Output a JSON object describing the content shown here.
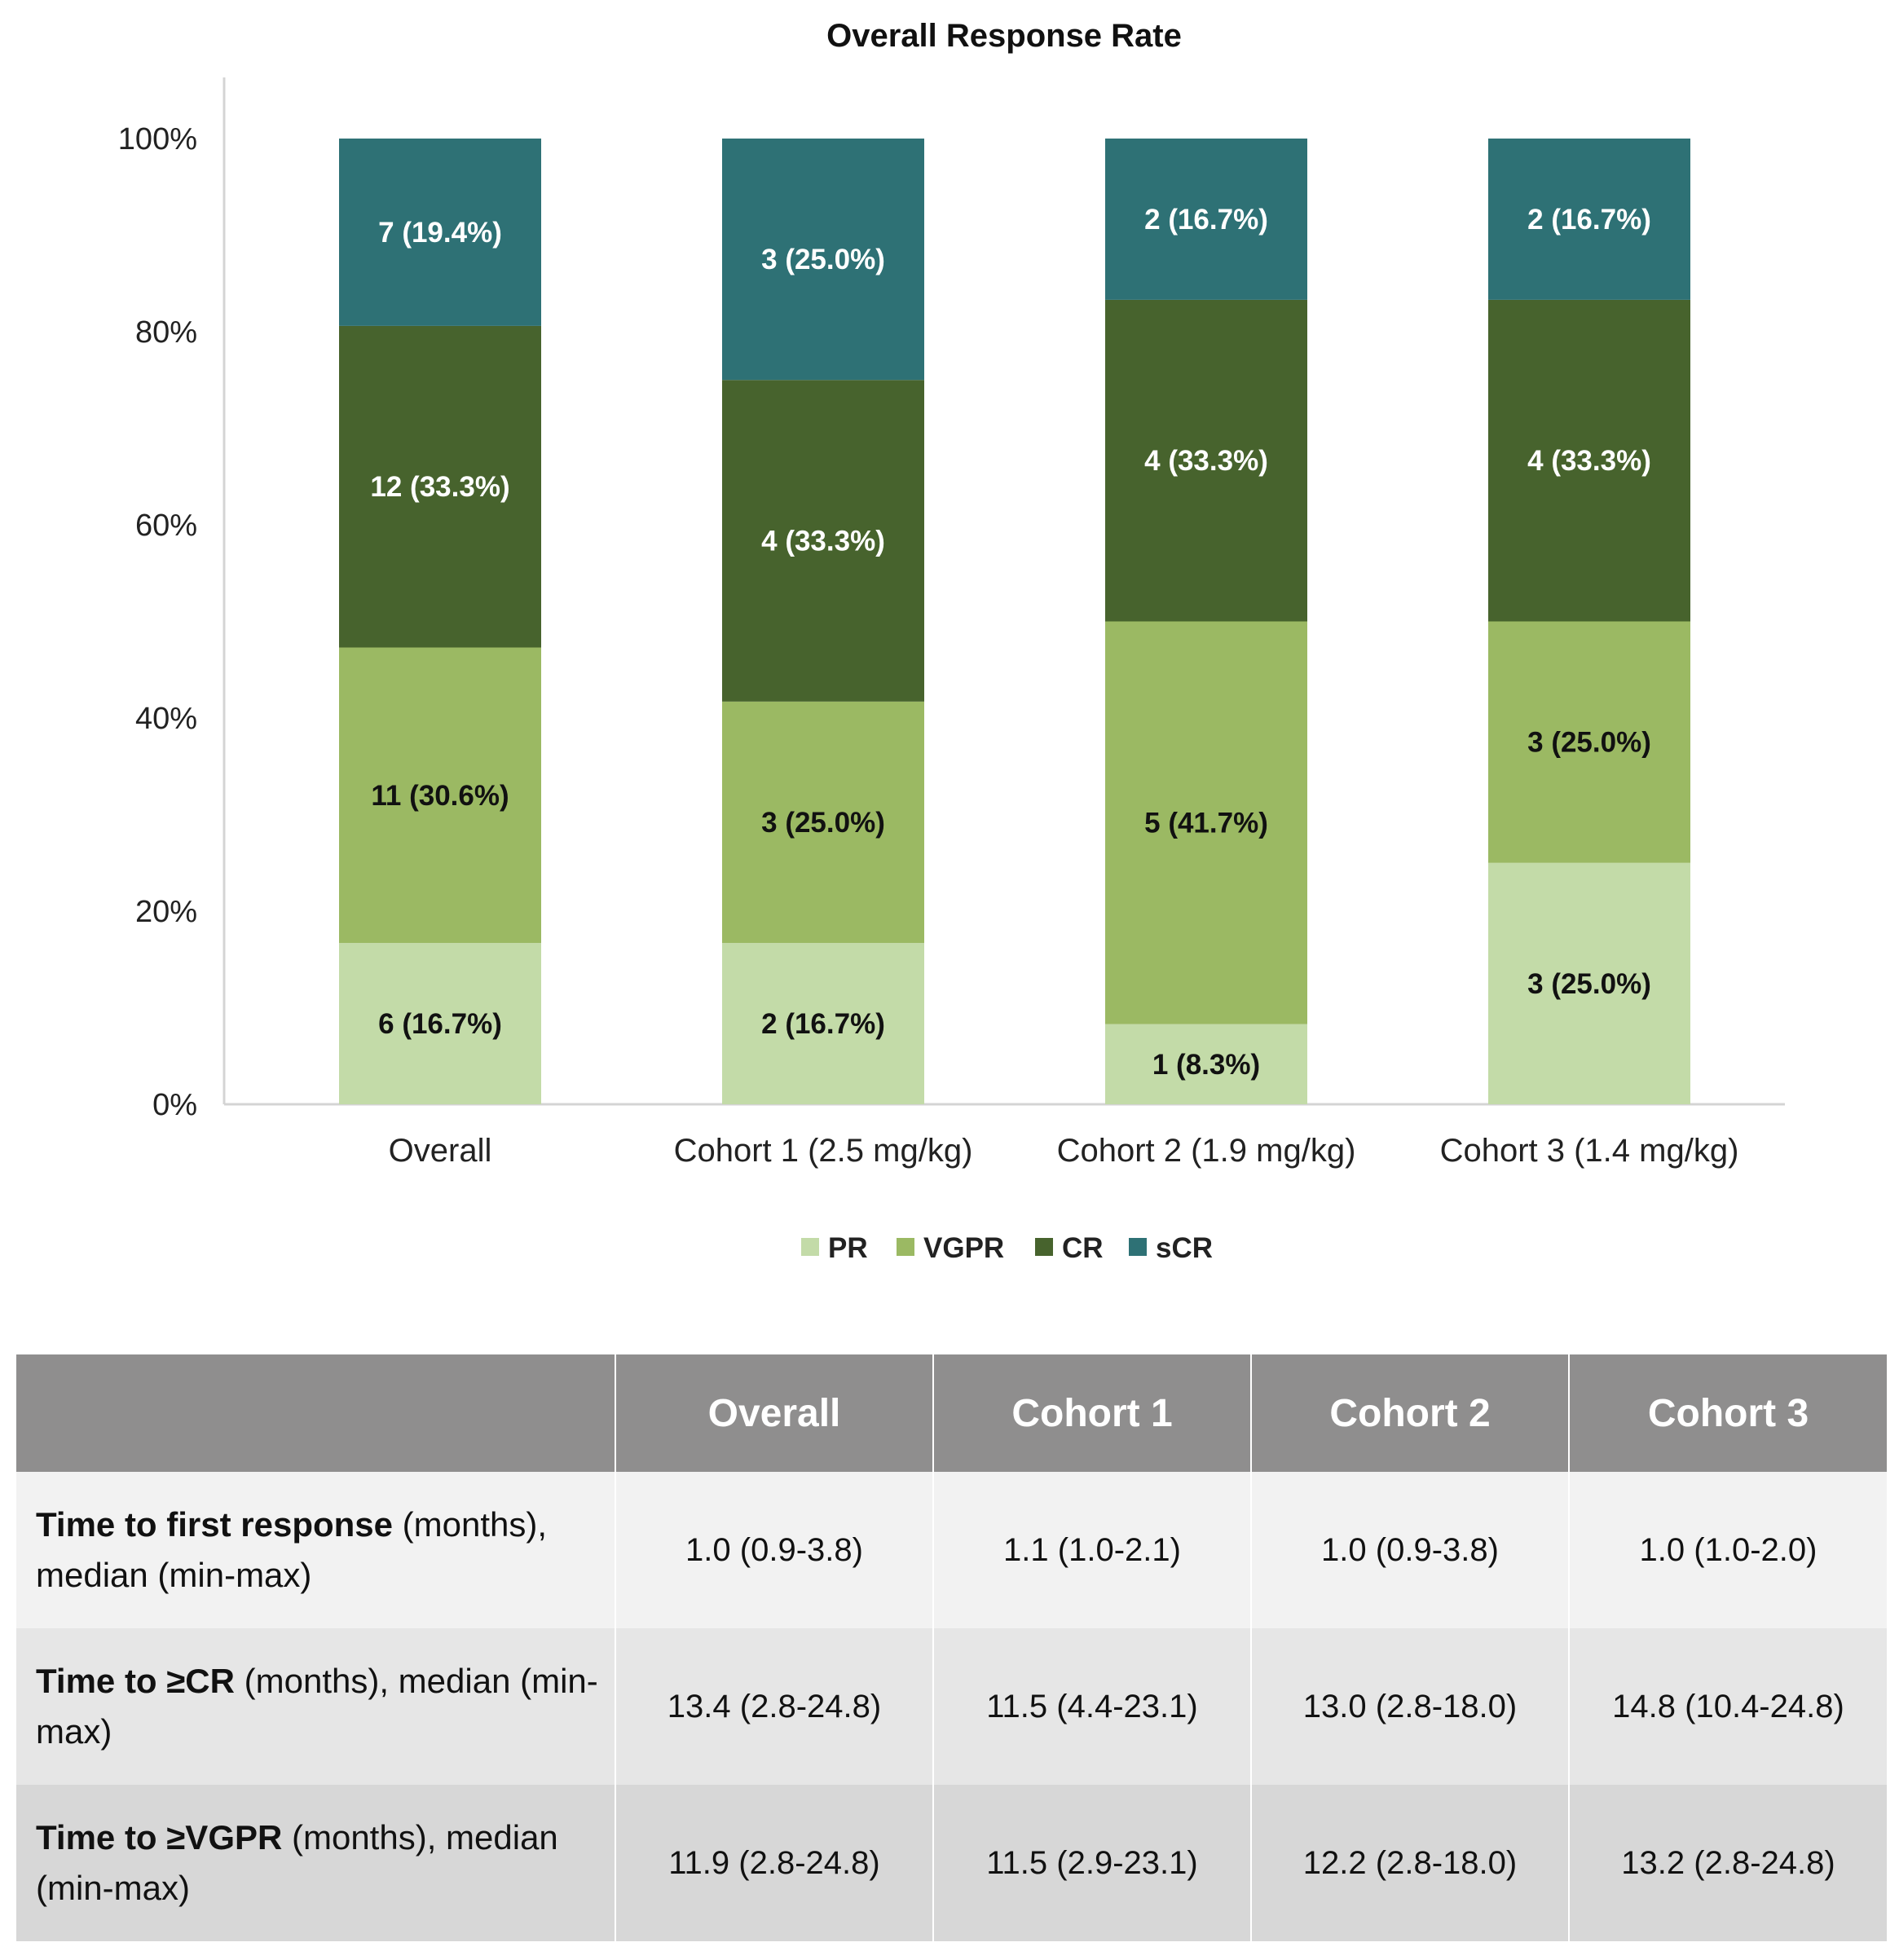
{
  "chart_data": {
    "type": "bar",
    "stacked": true,
    "title": "Overall Response Rate",
    "categories": [
      "Overall",
      "Cohort 1 (2.5 mg/kg)",
      "Cohort 2 (1.9 mg/kg)",
      "Cohort 3 (1.4 mg/kg)"
    ],
    "ylim": [
      0,
      100
    ],
    "yticks": [
      "0%",
      "20%",
      "40%",
      "60%",
      "80%",
      "100%"
    ],
    "legend_position": "bottom",
    "series": [
      {
        "name": "PR",
        "color": "#c3dba8",
        "label_color": "#111111",
        "values": [
          16.7,
          16.7,
          8.3,
          25.0
        ],
        "labels": [
          "6 (16.7%)",
          "2 (16.7%)",
          "1 (8.3%)",
          "3 (25.0%)"
        ]
      },
      {
        "name": "VGPR",
        "color": "#9bb963",
        "label_color": "#111111",
        "values": [
          30.6,
          25.0,
          41.7,
          25.0
        ],
        "labels": [
          "11 (30.6%)",
          "3 (25.0%)",
          "5 (41.7%)",
          "3 (25.0%)"
        ]
      },
      {
        "name": "CR",
        "color": "#47632d",
        "label_color": "#ffffff",
        "values": [
          33.3,
          33.3,
          33.3,
          33.3
        ],
        "labels": [
          "12 (33.3%)",
          "4 (33.3%)",
          "4 (33.3%)",
          "4 (33.3%)"
        ]
      },
      {
        "name": "sCR",
        "color": "#2e7175",
        "label_color": "#ffffff",
        "values": [
          19.4,
          25.0,
          16.7,
          16.7
        ],
        "labels": [
          "7 (19.4%)",
          "3 (25.0%)",
          "2 (16.7%)",
          "2 (16.7%)"
        ]
      }
    ]
  },
  "table": {
    "headers": [
      "",
      "Overall",
      "Cohort 1",
      "Cohort 2",
      "Cohort 3"
    ],
    "rows": [
      {
        "label_bold": "Time to first response",
        "label_rest": " (months), median (min-max)",
        "values": [
          "1.0 (0.9-3.8)",
          "1.1 (1.0-2.1)",
          "1.0 (0.9-3.8)",
          "1.0 (1.0-2.0)"
        ]
      },
      {
        "label_bold": "Time to ≥CR",
        "label_rest": " (months), median (min-max)",
        "values": [
          "13.4 (2.8-24.8)",
          "11.5 (4.4-23.1)",
          "13.0 (2.8-18.0)",
          "14.8 (10.4-24.8)"
        ]
      },
      {
        "label_bold": "Time to ≥VGPR",
        "label_rest": " (months), median (min-max)",
        "values": [
          "11.9 (2.8-24.8)",
          "11.5 (2.9-23.1)",
          "12.2 (2.8-18.0)",
          "13.2 (2.8-24.8)"
        ]
      }
    ]
  }
}
